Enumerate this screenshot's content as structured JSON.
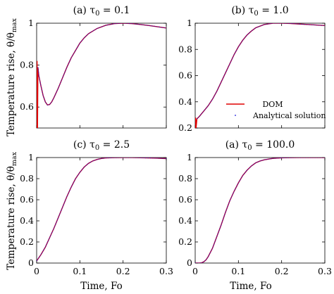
{
  "ylabel": "Temperature rise, θ/θmax",
  "xlabel": "Time, Fo",
  "legend": {
    "dom": "DOM",
    "analytical": "Analytical solution"
  },
  "colors": {
    "dom": "#e00000",
    "analytical": "#1010dd"
  },
  "chart_data": [
    {
      "type": "line",
      "title": "(a) τ0 = 0.1",
      "xlim": [
        0,
        0.3
      ],
      "ylim": [
        0.5,
        1.0
      ],
      "yticks": [
        "0.6",
        "0.8",
        "1"
      ],
      "xticks": [],
      "legend": false,
      "series": [
        {
          "name": "DOM",
          "x": [
            0,
            0.001,
            0.002,
            0.003,
            0.004,
            0.005,
            0.01,
            0.015,
            0.02,
            0.025,
            0.03,
            0.035,
            0.04,
            0.05,
            0.06,
            0.07,
            0.08,
            0.09,
            0.1,
            0.11,
            0.12,
            0.14,
            0.16,
            0.18,
            0.2,
            0.22,
            0.24,
            0.26,
            0.28,
            0.3
          ],
          "y": [
            0.5,
            0.82,
            0.5,
            0.79,
            0.77,
            0.75,
            0.7,
            0.655,
            0.625,
            0.61,
            0.612,
            0.625,
            0.645,
            0.69,
            0.74,
            0.79,
            0.835,
            0.87,
            0.905,
            0.93,
            0.95,
            0.975,
            0.99,
            0.998,
            1.0,
            0.998,
            0.994,
            0.989,
            0.983,
            0.977
          ]
        },
        {
          "name": "Analytical solution",
          "x": [
            0.003,
            0.005,
            0.01,
            0.015,
            0.02,
            0.025,
            0.03,
            0.035,
            0.04,
            0.05,
            0.06,
            0.07,
            0.08,
            0.09,
            0.1,
            0.11,
            0.12,
            0.14,
            0.16,
            0.18,
            0.2,
            0.22,
            0.24,
            0.26,
            0.28,
            0.3
          ],
          "y": [
            0.79,
            0.75,
            0.7,
            0.655,
            0.625,
            0.61,
            0.612,
            0.625,
            0.645,
            0.69,
            0.74,
            0.79,
            0.835,
            0.87,
            0.905,
            0.93,
            0.95,
            0.975,
            0.99,
            0.998,
            1.0,
            0.998,
            0.994,
            0.989,
            0.983,
            0.977
          ]
        }
      ]
    },
    {
      "type": "line",
      "title": "(b) τ0 = 1.0",
      "xlim": [
        0,
        0.3
      ],
      "ylim": [
        0.2,
        1.0
      ],
      "yticks": [
        "0.2",
        "0.4",
        "0.6",
        "0.8",
        "1"
      ],
      "xticks": [],
      "legend": true,
      "series": [
        {
          "name": "DOM",
          "x": [
            0,
            0.001,
            0.002,
            0.004,
            0.01,
            0.02,
            0.03,
            0.04,
            0.05,
            0.06,
            0.07,
            0.08,
            0.09,
            0.1,
            0.11,
            0.12,
            0.13,
            0.14,
            0.16,
            0.18,
            0.2,
            0.22,
            0.24,
            0.26,
            0.28,
            0.3
          ],
          "y": [
            0.2,
            0.28,
            0.2,
            0.27,
            0.29,
            0.33,
            0.37,
            0.42,
            0.48,
            0.55,
            0.62,
            0.69,
            0.76,
            0.82,
            0.87,
            0.91,
            0.94,
            0.965,
            0.99,
            1.0,
            1.0,
            0.998,
            0.994,
            0.99,
            0.986,
            0.982
          ]
        },
        {
          "name": "Analytical solution",
          "x": [
            0.004,
            0.01,
            0.02,
            0.03,
            0.04,
            0.05,
            0.06,
            0.07,
            0.08,
            0.09,
            0.1,
            0.11,
            0.12,
            0.13,
            0.14,
            0.16,
            0.18,
            0.2,
            0.22,
            0.24,
            0.26,
            0.28,
            0.3
          ],
          "y": [
            0.27,
            0.29,
            0.33,
            0.37,
            0.42,
            0.48,
            0.55,
            0.62,
            0.69,
            0.76,
            0.82,
            0.87,
            0.91,
            0.94,
            0.965,
            0.99,
            1.0,
            1.0,
            0.998,
            0.994,
            0.99,
            0.986,
            0.982
          ]
        }
      ]
    },
    {
      "type": "line",
      "title": "(c) τ0 = 2.5",
      "xlim": [
        0,
        0.3
      ],
      "ylim": [
        0,
        1.0
      ],
      "yticks": [
        "0",
        "0.2",
        "0.4",
        "0.6",
        "0.8",
        "1"
      ],
      "xticks": [
        "0",
        "0.1",
        "0.2",
        "0.3"
      ],
      "legend": false,
      "series": [
        {
          "name": "DOM",
          "x": [
            0,
            0.01,
            0.02,
            0.03,
            0.04,
            0.05,
            0.06,
            0.07,
            0.08,
            0.09,
            0.1,
            0.11,
            0.12,
            0.13,
            0.14,
            0.15,
            0.16,
            0.18,
            0.2,
            0.22,
            0.24,
            0.26,
            0.28,
            0.3
          ],
          "y": [
            0.02,
            0.08,
            0.15,
            0.24,
            0.33,
            0.43,
            0.53,
            0.63,
            0.72,
            0.8,
            0.86,
            0.91,
            0.945,
            0.968,
            0.982,
            0.991,
            0.996,
            0.999,
            1.0,
            1.0,
            0.998,
            0.996,
            0.994,
            0.99
          ]
        },
        {
          "name": "Analytical solution",
          "x": [
            0,
            0.01,
            0.02,
            0.03,
            0.04,
            0.05,
            0.06,
            0.07,
            0.08,
            0.09,
            0.1,
            0.11,
            0.12,
            0.13,
            0.14,
            0.15,
            0.16,
            0.18,
            0.2,
            0.22,
            0.24,
            0.26,
            0.28,
            0.3
          ],
          "y": [
            0.02,
            0.08,
            0.15,
            0.24,
            0.33,
            0.43,
            0.53,
            0.63,
            0.72,
            0.8,
            0.86,
            0.91,
            0.945,
            0.968,
            0.982,
            0.991,
            0.996,
            0.999,
            1.0,
            1.0,
            0.998,
            0.996,
            0.994,
            0.99
          ]
        }
      ]
    },
    {
      "type": "line",
      "title": "(a) τ0 = 100.0",
      "xlim": [
        0,
        0.3
      ],
      "ylim": [
        0,
        1.0
      ],
      "yticks": [
        "0",
        "0.2",
        "0.4",
        "0.6",
        "0.8",
        "1"
      ],
      "xticks": [
        "0",
        "0.1",
        "0.2",
        "0.3"
      ],
      "legend": false,
      "series": [
        {
          "name": "DOM",
          "x": [
            0,
            0.01,
            0.015,
            0.02,
            0.025,
            0.03,
            0.04,
            0.05,
            0.06,
            0.07,
            0.08,
            0.09,
            0.1,
            0.11,
            0.12,
            0.13,
            0.14,
            0.15,
            0.16,
            0.18,
            0.2,
            0.22,
            0.24,
            0.26,
            0.28,
            0.3
          ],
          "y": [
            0,
            0,
            0.003,
            0.012,
            0.03,
            0.06,
            0.14,
            0.25,
            0.36,
            0.48,
            0.59,
            0.68,
            0.76,
            0.83,
            0.88,
            0.92,
            0.95,
            0.967,
            0.979,
            0.992,
            0.997,
            0.999,
            1.0,
            1.0,
            1.0,
            1.0
          ]
        },
        {
          "name": "Analytical solution",
          "x": [
            0,
            0.01,
            0.015,
            0.02,
            0.025,
            0.03,
            0.04,
            0.05,
            0.06,
            0.07,
            0.08,
            0.09,
            0.1,
            0.11,
            0.12,
            0.13,
            0.14,
            0.15,
            0.16,
            0.18,
            0.2,
            0.22,
            0.24,
            0.26,
            0.28,
            0.3
          ],
          "y": [
            0,
            0,
            0.003,
            0.012,
            0.03,
            0.06,
            0.14,
            0.25,
            0.36,
            0.48,
            0.59,
            0.68,
            0.76,
            0.83,
            0.88,
            0.92,
            0.95,
            0.967,
            0.979,
            0.992,
            0.997,
            0.999,
            1.0,
            1.0,
            1.0,
            1.0
          ]
        }
      ]
    }
  ]
}
